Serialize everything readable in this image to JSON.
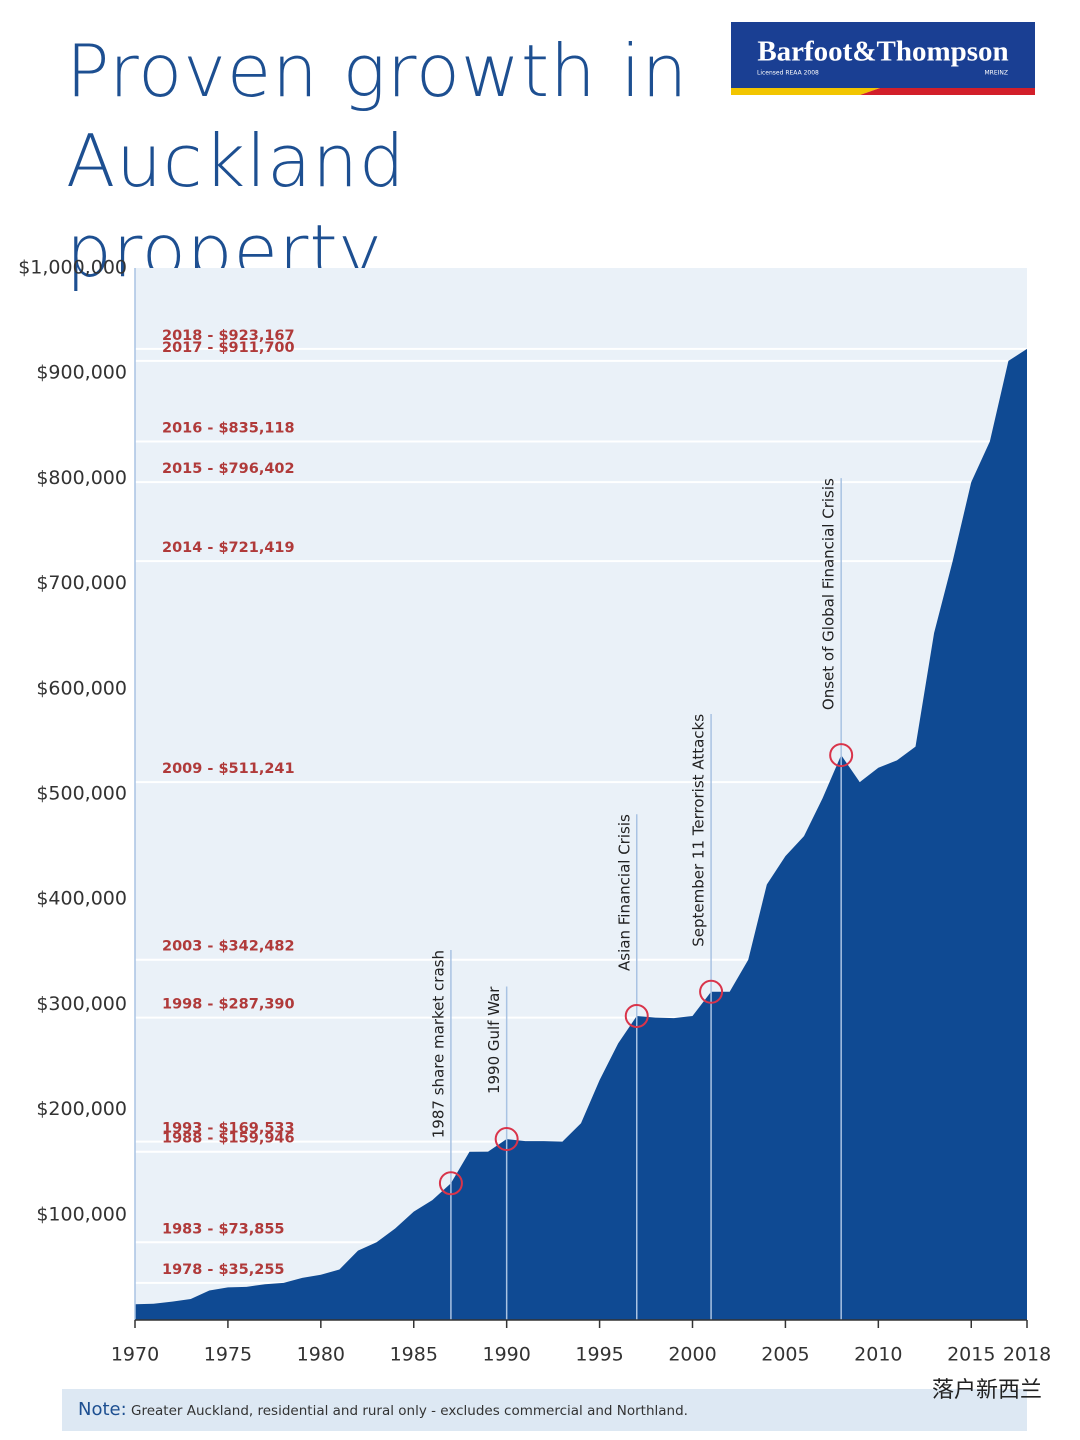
{
  "logo": {
    "name": "Barfoot&Thompson",
    "license": "Licensed REAA 2008",
    "member": "MREINZ"
  },
  "chart_data": {
    "type": "area",
    "title": "Proven growth in Auckland property",
    "color": "#0f4a93",
    "x": [
      1970,
      1971,
      1972,
      1973,
      1974,
      1975,
      1976,
      1977,
      1978,
      1979,
      1980,
      1981,
      1982,
      1983,
      1984,
      1985,
      1986,
      1987,
      1988,
      1989,
      1990,
      1991,
      1992,
      1993,
      1994,
      1995,
      1996,
      1997,
      1998,
      1999,
      2000,
      2001,
      2002,
      2003,
      2004,
      2005,
      2006,
      2007,
      2008,
      2009,
      2010,
      2011,
      2012,
      2013,
      2014,
      2015,
      2016,
      2017,
      2018
    ],
    "values": [
      15000,
      15500,
      17500,
      20000,
      28000,
      31000,
      31500,
      34000,
      35255,
      40000,
      43000,
      48000,
      66000,
      73855,
      87000,
      103000,
      114000,
      130000,
      159946,
      160000,
      172000,
      170000,
      170000,
      169533,
      187000,
      228000,
      263000,
      289000,
      287390,
      287000,
      289000,
      312000,
      312000,
      342482,
      414000,
      441000,
      460000,
      496000,
      537000,
      511241,
      525000,
      532000,
      545000,
      653000,
      721419,
      796402,
      835118,
      911700,
      923167
    ],
    "xlim": [
      1970,
      2018
    ],
    "xticks": [
      1970,
      1975,
      1980,
      1985,
      1990,
      1995,
      2000,
      2005,
      2010,
      2015,
      2018
    ],
    "ylim": [
      0,
      1000000
    ],
    "yticks": [
      {
        "value": 100000,
        "label": "$100,000"
      },
      {
        "value": 200000,
        "label": "$200,000"
      },
      {
        "value": 300000,
        "label": "$300,000"
      },
      {
        "value": 400000,
        "label": "$400,000"
      },
      {
        "value": 500000,
        "label": "$500,000"
      },
      {
        "value": 600000,
        "label": "$600,000"
      },
      {
        "value": 700000,
        "label": "$700,000"
      },
      {
        "value": 800000,
        "label": "$800,000"
      },
      {
        "value": 900000,
        "label": "$900,000"
      },
      {
        "value": 1000000,
        "label": "$1,000,000"
      }
    ],
    "reference_lines": [
      {
        "value": 923167,
        "label": "2018 - $923,167"
      },
      {
        "value": 911700,
        "label": "2017 - $911,700"
      },
      {
        "value": 835118,
        "label": "2016 - $835,118"
      },
      {
        "value": 796402,
        "label": "2015 - $796,402"
      },
      {
        "value": 721419,
        "label": "2014 - $721,419"
      },
      {
        "value": 511241,
        "label": "2009 - $511,241"
      },
      {
        "value": 342482,
        "label": "2003 - $342,482"
      },
      {
        "value": 287390,
        "label": "1998 - $287,390"
      },
      {
        "value": 169533,
        "label": "1993 - $169,533"
      },
      {
        "value": 159946,
        "label": "1988 - $159,946"
      },
      {
        "value": 73855,
        "label": "1983 - $73,855"
      },
      {
        "value": 35255,
        "label": "1978 - $35,255"
      }
    ],
    "events": [
      {
        "year": 1987,
        "label": "1987 share market crash"
      },
      {
        "year": 1990,
        "label": "1990 Gulf War"
      },
      {
        "year": 1997,
        "label": "Asian Financial Crisis"
      },
      {
        "year": 2001,
        "label": "September 11 Terrorist Attacks"
      },
      {
        "year": 2008,
        "label": "Onset of Global Financial Crisis"
      }
    ]
  },
  "note": {
    "heading": "Note:",
    "text": "Greater Auckland, residential and rural only - excludes commercial and Northland."
  },
  "watermark": "落户新西兰"
}
